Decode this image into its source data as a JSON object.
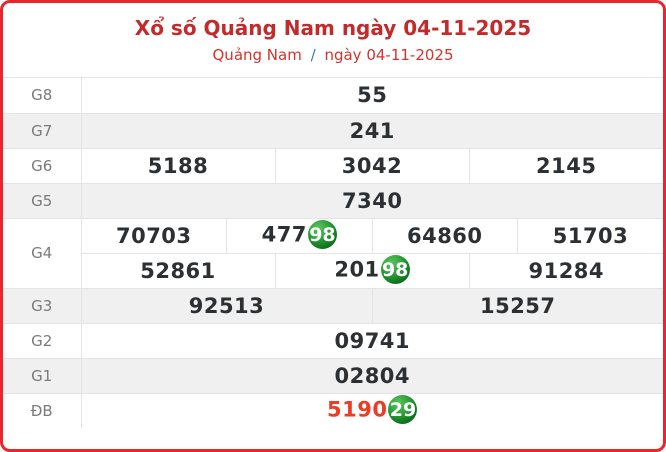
{
  "header": {
    "title": "Xổ số Quảng Nam ngày 04-11-2025",
    "breadcrumb": {
      "region": "Quảng Nam",
      "separator": "/",
      "date": "ngày 04-11-2025"
    }
  },
  "table": {
    "rows": [
      {
        "label": "G8",
        "shade": false,
        "lines": [
          [
            {
              "t": "55"
            }
          ]
        ]
      },
      {
        "label": "G7",
        "shade": true,
        "lines": [
          [
            {
              "t": "241"
            }
          ]
        ]
      },
      {
        "label": "G6",
        "shade": false,
        "lines": [
          [
            {
              "t": "5188"
            },
            {
              "t": "3042"
            },
            {
              "t": "2145"
            }
          ]
        ]
      },
      {
        "label": "G5",
        "shade": true,
        "lines": [
          [
            {
              "t": "7340"
            }
          ]
        ]
      },
      {
        "label": "G4",
        "shade": false,
        "lines": [
          [
            {
              "t": "70703"
            },
            {
              "t": "477",
              "ball": "98"
            },
            {
              "t": "64860"
            },
            {
              "t": "51703"
            }
          ],
          [
            {
              "t": "52861"
            },
            {
              "t": "201",
              "ball": "98"
            },
            {
              "t": "91284"
            }
          ]
        ]
      },
      {
        "label": "G3",
        "shade": true,
        "lines": [
          [
            {
              "t": "92513"
            },
            {
              "t": "15257"
            }
          ]
        ]
      },
      {
        "label": "G2",
        "shade": false,
        "lines": [
          [
            {
              "t": "09741"
            }
          ]
        ]
      },
      {
        "label": "G1",
        "shade": true,
        "lines": [
          [
            {
              "t": "02804"
            }
          ]
        ]
      },
      {
        "label": "ĐB",
        "shade": false,
        "lines": [
          [
            {
              "t": "5190",
              "ball": "29",
              "accent": true
            }
          ]
        ]
      }
    ]
  },
  "colors": {
    "brand-red": "#e8262d",
    "title-red": "#c22b2b",
    "link-red": "#d0342c",
    "sep-blue": "#3779bd",
    "num-dark": "#2d3033",
    "label-gray": "#7a7a7a",
    "accent-red": "#ee3b24",
    "row-shade": "#f0f0f0",
    "border-gray": "#e4e4e4"
  }
}
